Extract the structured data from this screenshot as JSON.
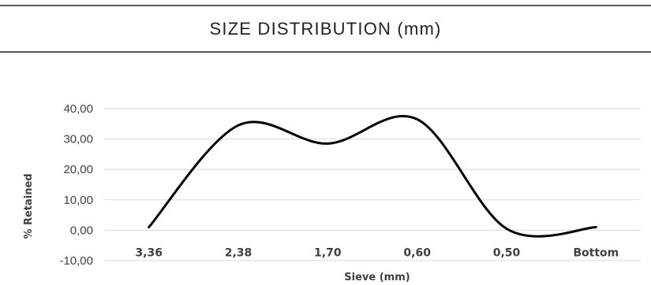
{
  "chart_data": {
    "type": "line",
    "smooth": true,
    "title": "SIZE DISTRIBUTION (mm)",
    "xlabel": "Sieve (mm)",
    "ylabel": "% Retained",
    "categories": [
      "3,36",
      "2,38",
      "1,70",
      "0,60",
      "0,50",
      "Bottom"
    ],
    "y_ticks": [
      "40,00",
      "30,00",
      "20,00",
      "10,00",
      "0,00",
      "-10,00"
    ],
    "y_tick_values": [
      40,
      30,
      20,
      10,
      0,
      -10
    ],
    "ylim": [
      -10,
      40
    ],
    "grid": "horizontal",
    "legend": "none",
    "series": [
      {
        "values": [
          1.0,
          34.5,
          28.5,
          36.5,
          0.5,
          1.0
        ],
        "color": "#000000"
      }
    ],
    "gridline_color": "#d9d9d9",
    "axis_text_color": "#404040"
  }
}
